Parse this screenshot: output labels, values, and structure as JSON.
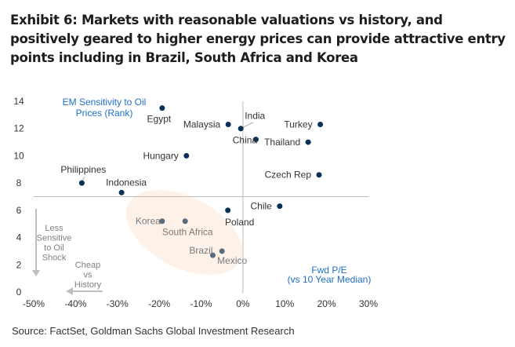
{
  "title": "Exhibit 6: Markets with reasonable valuations vs history, and positively geared to higher energy prices can provide attractive entry points including in Brazil, South Africa and Korea",
  "source": "Source: FactSet, Goldman Sachs Global Investment Research",
  "chart_data": {
    "type": "scatter",
    "title": "",
    "xlabel": "Fwd P/E (vs 10 Year Median)",
    "xlabel_lines": [
      "Fwd P/E",
      "(vs 10 Year Median)"
    ],
    "ylabel": "EM Sensitivity to Oil Prices (Rank)",
    "ylabel_lines": [
      "EM Sensitivity to Oil",
      "Prices (Rank)"
    ],
    "xlim": [
      -50,
      30
    ],
    "ylim": [
      0,
      14
    ],
    "x_ticks": [
      "-50%",
      "-40%",
      "-30%",
      "-20%",
      "-10%",
      "0%",
      "10%",
      "20%",
      "30%"
    ],
    "y_ticks": [
      "0",
      "2",
      "4",
      "6",
      "8",
      "10",
      "12",
      "14"
    ],
    "x_divider": 0,
    "y_divider": 7,
    "annotations": {
      "down_arrow": [
        "Less",
        "Sensitive",
        "to Oil",
        "Shock"
      ],
      "left_arrow": [
        "Cheap",
        "vs",
        "History"
      ]
    },
    "points": [
      {
        "label": "Egypt",
        "x": -19.3,
        "y": 13.5,
        "highlight": false
      },
      {
        "label": "Malaysia",
        "x": -3.5,
        "y": 12.3,
        "highlight": false
      },
      {
        "label": "India",
        "x": -0.5,
        "y": 12.0,
        "highlight": false
      },
      {
        "label": "China",
        "x": 3.1,
        "y": 11.2,
        "highlight": false
      },
      {
        "label": "Turkey",
        "x": 18.5,
        "y": 12.3,
        "highlight": false
      },
      {
        "label": "Thailand",
        "x": 15.6,
        "y": 11.0,
        "highlight": false
      },
      {
        "label": "Hungary",
        "x": -13.5,
        "y": 10.0,
        "highlight": false
      },
      {
        "label": "Czech Rep",
        "x": 18.2,
        "y": 8.6,
        "highlight": false
      },
      {
        "label": "Philippines",
        "x": -38.5,
        "y": 8.0,
        "highlight": false
      },
      {
        "label": "Indonesia",
        "x": -29.0,
        "y": 7.3,
        "highlight": false
      },
      {
        "label": "Chile",
        "x": 8.8,
        "y": 6.3,
        "highlight": false
      },
      {
        "label": "Poland",
        "x": -3.6,
        "y": 6.0,
        "highlight": false
      },
      {
        "label": "Korea",
        "x": -19.3,
        "y": 5.2,
        "highlight": true
      },
      {
        "label": "South Africa",
        "x": -13.8,
        "y": 5.2,
        "highlight": true
      },
      {
        "label": "Mexico",
        "x": -5.0,
        "y": 3.0,
        "highlight": true
      },
      {
        "label": "Brazil",
        "x": -7.2,
        "y": 2.7,
        "highlight": true
      }
    ],
    "colors": {
      "point": "#0b3057",
      "highlight_point": "#5a6b7d",
      "label": "#333333",
      "highlight_label": "#7a7a7a",
      "axis_title": "#1f6fc8",
      "ellipse": "#fdf1e8",
      "arrow": "#bfbfbf"
    }
  }
}
